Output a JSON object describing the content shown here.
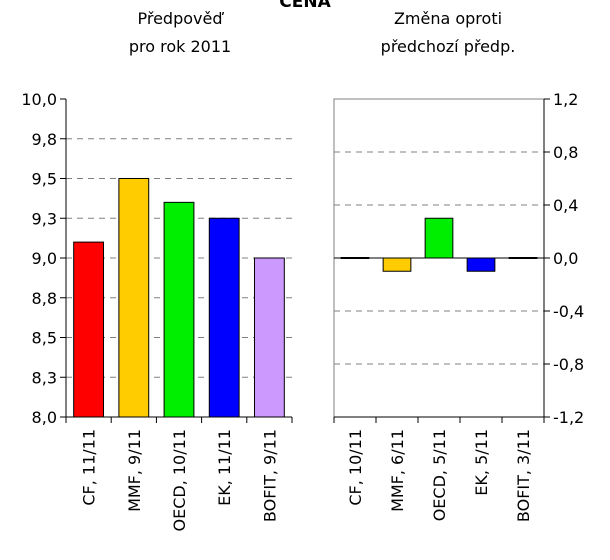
{
  "title": "CENA",
  "chart_data": [
    {
      "type": "bar",
      "subtitle_lines": [
        "Předpověď",
        "pro rok 2011"
      ],
      "categories": [
        "CF, 11/11",
        "MMF, 9/11",
        "OECD, 10/11",
        "EK, 11/11",
        "BOFIT, 9/11"
      ],
      "values": [
        9.1,
        9.5,
        9.35,
        9.25,
        9.0
      ],
      "colors": [
        "#ff0000",
        "#ffcc00",
        "#00ee00",
        "#0000ff",
        "#cc99ff"
      ],
      "ylim": [
        8.0,
        10.0
      ],
      "yticks": [
        8.0,
        8.25,
        8.5,
        8.75,
        9.0,
        9.25,
        9.5,
        9.75,
        10.0
      ],
      "ytick_labels": [
        "8,0",
        "8,3",
        "8,5",
        "8,8",
        "9,0",
        "9,3",
        "9,5",
        "9,8",
        "10,0"
      ],
      "axis_side": "left",
      "grid": "horizontal dashed",
      "frame": false
    },
    {
      "type": "bar",
      "subtitle_lines": [
        "Změna oproti",
        "předchozí předp."
      ],
      "categories": [
        "CF, 10/11",
        "MMF, 6/11",
        "OECD, 5/11",
        "EK, 5/11",
        "BOFIT, 3/11"
      ],
      "values": [
        0.0,
        -0.1,
        0.3,
        -0.1,
        0.0
      ],
      "colors": [
        "#ff0000",
        "#ffcc00",
        "#00ee00",
        "#0000ff",
        "#cc99ff"
      ],
      "ylim": [
        -1.2,
        1.2
      ],
      "yticks": [
        -1.2,
        -0.8,
        -0.4,
        0.0,
        0.4,
        0.8,
        1.2
      ],
      "ytick_labels": [
        "-1,2",
        "-0,8",
        "-0,4",
        "0,0",
        "0,4",
        "0,8",
        "1,2"
      ],
      "axis_side": "right",
      "grid": "horizontal dashed",
      "frame": true
    }
  ]
}
